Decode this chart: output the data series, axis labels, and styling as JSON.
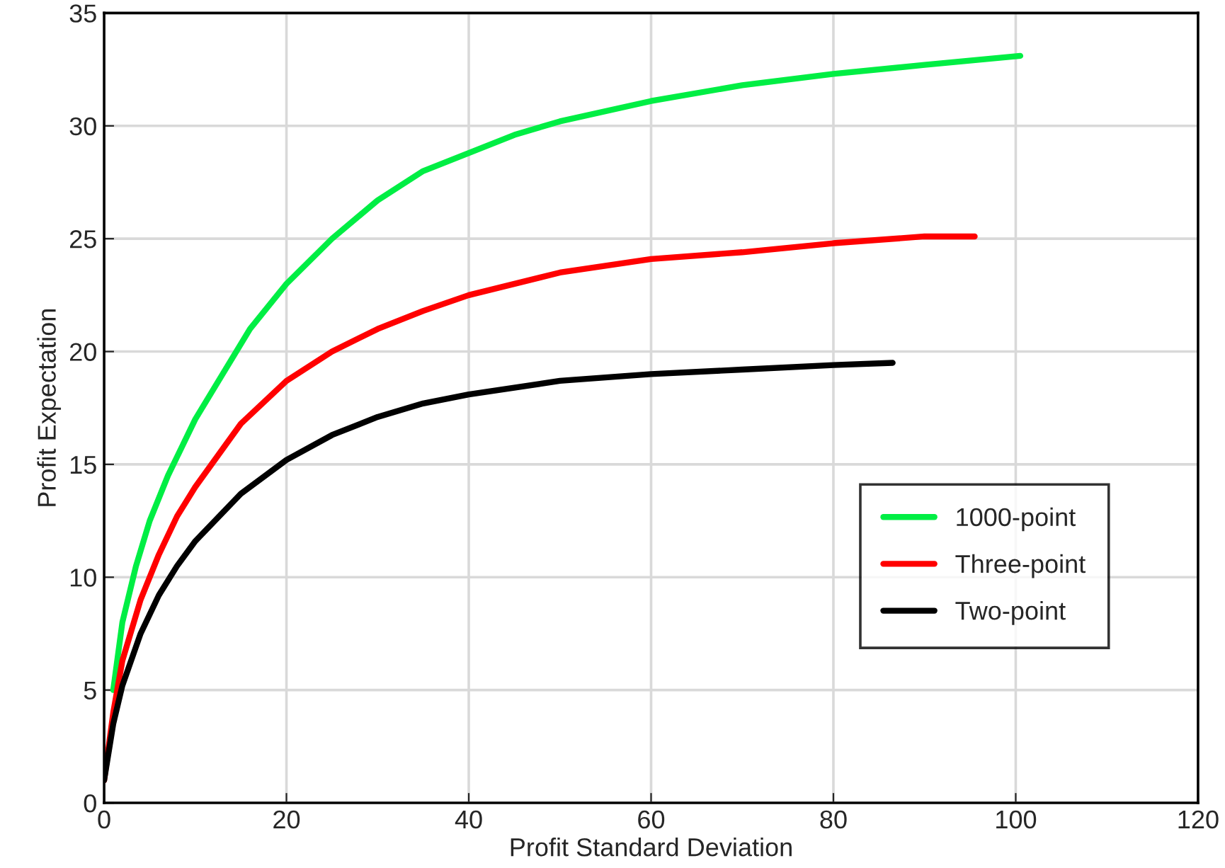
{
  "chart_data": {
    "type": "line",
    "xlabel": "Profit Standard Deviation",
    "ylabel": "Profit Expectation",
    "xlim": [
      0,
      120
    ],
    "xticks": [
      0,
      20,
      40,
      60,
      80,
      100,
      120
    ],
    "ylim": [
      0,
      35
    ],
    "yticks": [
      0,
      5,
      10,
      15,
      20,
      25,
      30,
      35
    ],
    "grid": true,
    "legend": "bottom right",
    "marker": "none",
    "line_style": "solid",
    "series": [
      {
        "name": "1000-point",
        "color": "#00ee44",
        "x": [
          1,
          2,
          3.5,
          5,
          7,
          10,
          13,
          16,
          20,
          25,
          30,
          35,
          40,
          45,
          50,
          60,
          70,
          80,
          90,
          100.5
        ],
        "values": [
          5,
          8,
          10.5,
          12.5,
          14.5,
          17,
          19,
          21,
          23,
          25,
          26.7,
          28,
          28.8,
          29.6,
          30.2,
          31.1,
          31.8,
          32.3,
          32.7,
          33.1
        ]
      },
      {
        "name": "Three-point",
        "color": "#ff0000",
        "x": [
          0,
          1,
          2,
          4,
          6,
          8,
          10,
          15,
          20,
          25,
          30,
          35,
          40,
          50,
          60,
          70,
          80,
          90,
          95.5
        ],
        "values": [
          1,
          4,
          6.3,
          9,
          11,
          12.7,
          14,
          16.8,
          18.7,
          20,
          21,
          21.8,
          22.5,
          23.5,
          24.1,
          24.4,
          24.8,
          25.1,
          25.1
        ]
      },
      {
        "name": "Two-point",
        "color": "#000000",
        "x": [
          0,
          1,
          2,
          4,
          6,
          8,
          10,
          15,
          20,
          25,
          30,
          35,
          40,
          50,
          60,
          70,
          80,
          86.5
        ],
        "values": [
          1,
          3.5,
          5.2,
          7.5,
          9.2,
          10.5,
          11.6,
          13.7,
          15.2,
          16.3,
          17.1,
          17.7,
          18.1,
          18.7,
          19.0,
          19.2,
          19.4,
          19.5
        ]
      }
    ]
  }
}
